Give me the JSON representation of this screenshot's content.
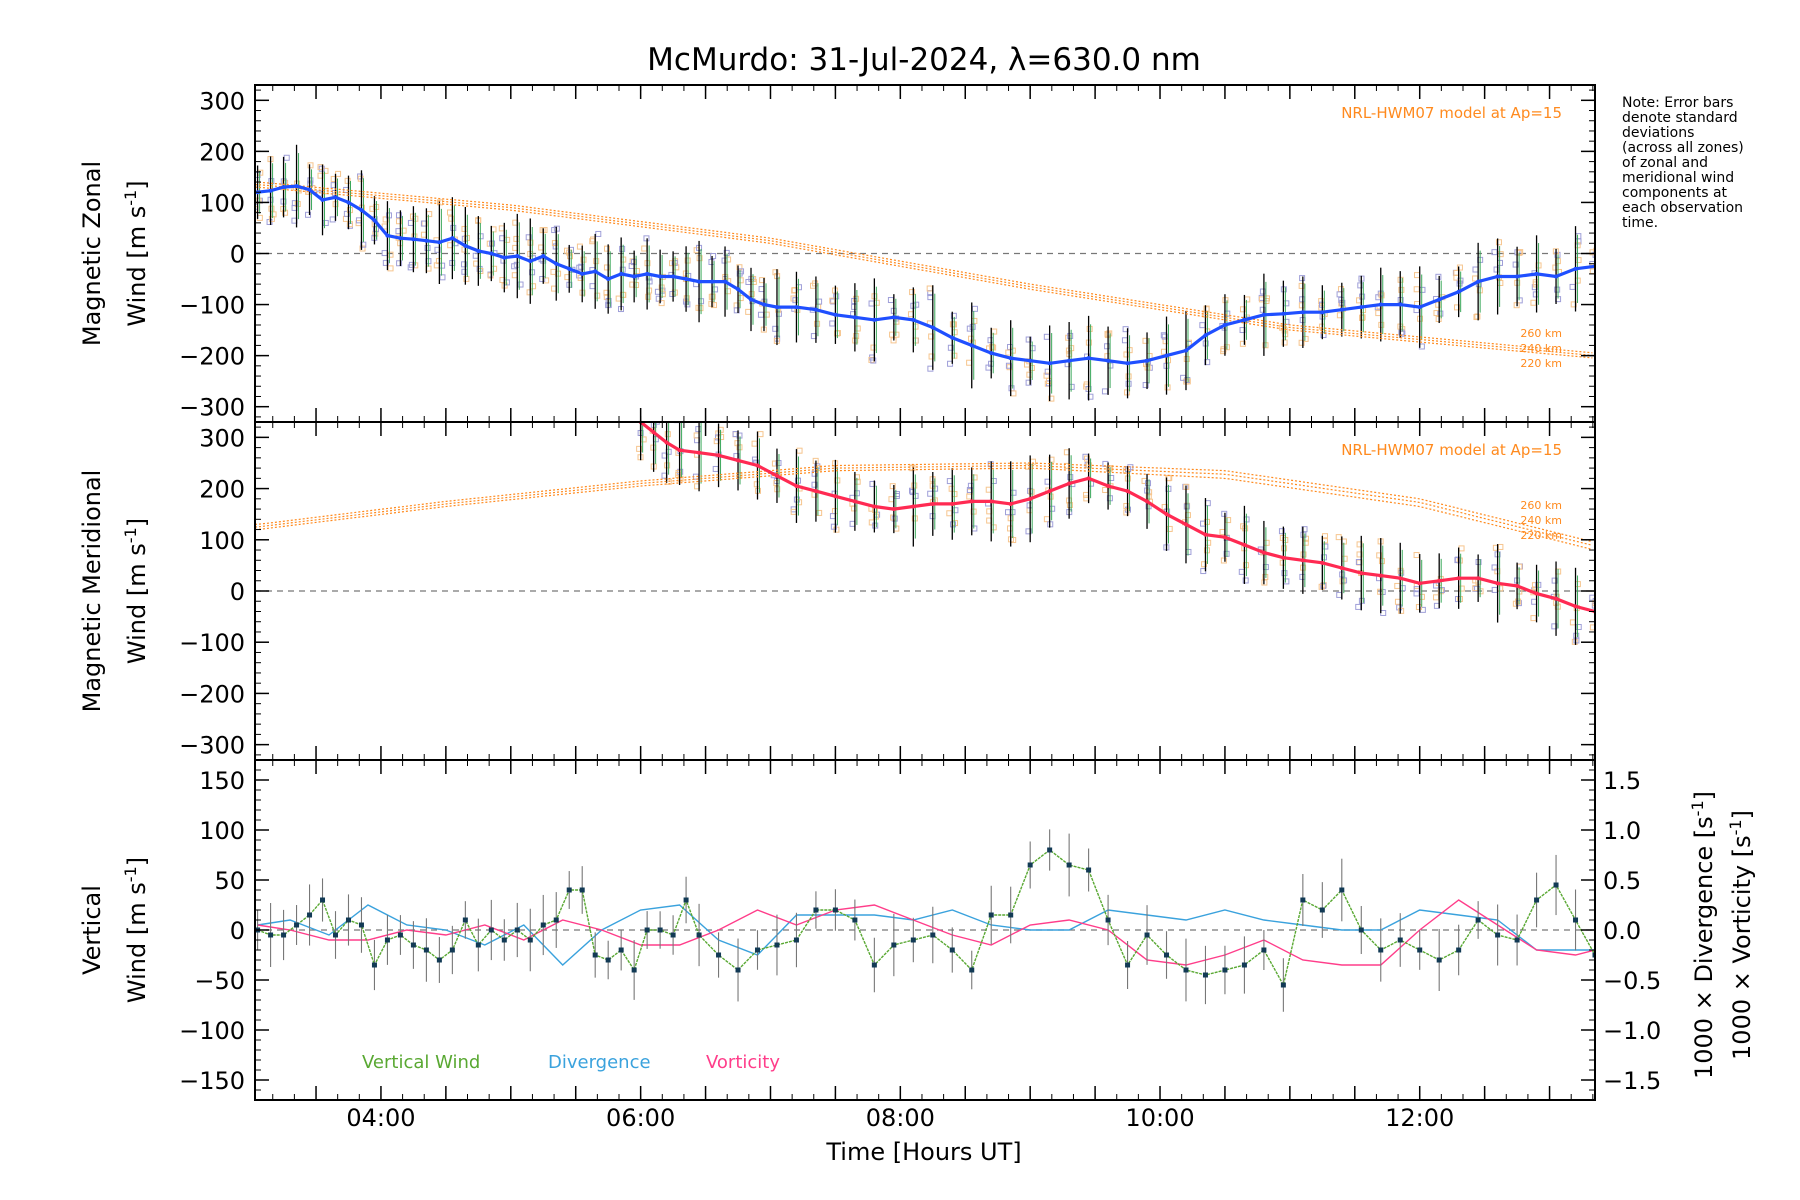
{
  "title": "McMurdo: 31-Jul-2024, λ=630.0 nm",
  "note": [
    "Note: Error bars",
    "denote standard",
    "deviations",
    "(across all zones)",
    "of zonal and",
    "meridional wind",
    "components at",
    "each observation",
    "time."
  ],
  "x_axis": {
    "label": "Time [Hours UT]",
    "ticks": [
      "04:00",
      "06:00",
      "08:00",
      "10:00",
      "12:00"
    ],
    "tick_values": [
      4,
      6,
      8,
      10,
      12
    ],
    "range": [
      3.03,
      13.35
    ]
  },
  "colors": {
    "zonal": "#1f4fff",
    "meridional": "#ff2a52",
    "vertical": "#59a832",
    "divergence": "#3aa2dd",
    "vorticity": "#ff3d8a",
    "model": "#ff8a1e",
    "zone_points": "#9f9fd8",
    "zone_points_alt": "#f6c58e",
    "errorbar": "#000000"
  },
  "chart_data": [
    {
      "type": "line",
      "panel": "zonal",
      "ylabel_line1": "Magnetic Zonal",
      "ylabel_line2": "Wind [m s",
      "ylabel_sup": "-1",
      "ylabel_end": "]",
      "ylim": [
        -330,
        330
      ],
      "yticks": [
        -300,
        -200,
        -100,
        0,
        100,
        200,
        300
      ],
      "ytick_labels": [
        "−300",
        "−200",
        "−100",
        "0",
        "100",
        "200",
        "300"
      ],
      "model_label": "NRL-HWM07 model at Ap=15",
      "model_altitudes": [
        "260 km",
        "240 km",
        "220 km"
      ],
      "series": [
        {
          "x": [
            3.05,
            3.15,
            3.25,
            3.35,
            3.45,
            3.55,
            3.65,
            3.75,
            3.85,
            3.95,
            4.05,
            4.15,
            4.25,
            4.35,
            4.45,
            4.55,
            4.65,
            4.75,
            4.85,
            4.95,
            5.05,
            5.15,
            5.25,
            5.35,
            5.45,
            5.55,
            5.65,
            5.75,
            5.85,
            5.95,
            6.05,
            6.15,
            6.25,
            6.35,
            6.45,
            6.55,
            6.65,
            6.75,
            6.85,
            6.95,
            7.05,
            7.2,
            7.35,
            7.5,
            7.65,
            7.8,
            7.95,
            8.1,
            8.25,
            8.4,
            8.55,
            8.7,
            8.85,
            9.0,
            9.15,
            9.3,
            9.45,
            9.6,
            9.75,
            9.9,
            10.05,
            10.2,
            10.35,
            10.5,
            10.65,
            10.8,
            10.95,
            11.1,
            11.25,
            11.4,
            11.55,
            11.7,
            11.85,
            12.0,
            12.15,
            12.3,
            12.45,
            12.6,
            12.75,
            12.9,
            13.05,
            13.2,
            13.35
          ],
          "y": [
            120,
            123,
            130,
            132,
            125,
            105,
            110,
            100,
            85,
            65,
            35,
            30,
            28,
            25,
            22,
            30,
            15,
            5,
            0,
            -8,
            -5,
            -15,
            -5,
            -20,
            -30,
            -40,
            -35,
            -50,
            -40,
            -45,
            -40,
            -45,
            -45,
            -50,
            -55,
            -55,
            -55,
            -70,
            -90,
            -100,
            -105,
            -105,
            -110,
            -120,
            -125,
            -130,
            -125,
            -130,
            -145,
            -165,
            -180,
            -195,
            -205,
            -210,
            -215,
            -210,
            -205,
            -210,
            -215,
            -210,
            -200,
            -190,
            -160,
            -140,
            -130,
            -120,
            -118,
            -115,
            -115,
            -110,
            -105,
            -100,
            -100,
            -105,
            -90,
            -75,
            -55,
            -45,
            -45,
            -40,
            -45,
            -30,
            -25
          ]
        }
      ],
      "model_curves": [
        {
          "name": "260 km",
          "x": [
            3.05,
            5,
            7,
            9,
            11,
            13.35
          ],
          "y": [
            140,
            95,
            30,
            -60,
            -140,
            -195
          ]
        },
        {
          "name": "240 km",
          "x": [
            3.05,
            5,
            7,
            9,
            11,
            13.35
          ],
          "y": [
            135,
            90,
            25,
            -65,
            -145,
            -200
          ]
        },
        {
          "name": "220 km",
          "x": [
            3.05,
            5,
            7,
            9,
            11,
            13.35
          ],
          "y": [
            130,
            85,
            20,
            -70,
            -150,
            -205
          ]
        }
      ]
    },
    {
      "type": "line",
      "panel": "meridional",
      "ylabel_line1": "Magnetic Meridional",
      "ylabel_line2": "Wind [m s",
      "ylabel_sup": "-1",
      "ylabel_end": "]",
      "ylim": [
        -330,
        330
      ],
      "yticks": [
        -300,
        -200,
        -100,
        0,
        100,
        200,
        300
      ],
      "ytick_labels": [
        "−300",
        "−200",
        "−100",
        "0",
        "100",
        "200",
        "300"
      ],
      "model_label": "NRL-HWM07 model at Ap=15",
      "model_altitudes": [
        "260 km",
        "240 km",
        "220 km"
      ],
      "series": [
        {
          "x": [
            6.0,
            6.1,
            6.2,
            6.3,
            6.45,
            6.6,
            6.75,
            6.9,
            7.05,
            7.2,
            7.35,
            7.5,
            7.65,
            7.8,
            7.95,
            8.1,
            8.25,
            8.4,
            8.55,
            8.7,
            8.85,
            9.0,
            9.15,
            9.3,
            9.45,
            9.6,
            9.75,
            9.9,
            10.05,
            10.2,
            10.35,
            10.5,
            10.65,
            10.8,
            10.95,
            11.1,
            11.25,
            11.4,
            11.55,
            11.7,
            11.85,
            12.0,
            12.15,
            12.3,
            12.45,
            12.6,
            12.75,
            12.9,
            13.05,
            13.2,
            13.35
          ],
          "y": [
            330,
            310,
            290,
            275,
            270,
            265,
            255,
            245,
            225,
            205,
            195,
            185,
            175,
            165,
            160,
            165,
            170,
            170,
            175,
            175,
            170,
            180,
            195,
            210,
            220,
            205,
            195,
            175,
            150,
            130,
            110,
            105,
            90,
            75,
            65,
            60,
            55,
            45,
            35,
            30,
            25,
            15,
            20,
            25,
            25,
            15,
            10,
            -5,
            -15,
            -30,
            -40
          ]
        }
      ],
      "model_curves": [
        {
          "name": "260 km",
          "x": [
            3.05,
            4.5,
            6,
            7.5,
            9,
            10.5,
            12,
            13.35
          ],
          "y": [
            130,
            175,
            215,
            245,
            250,
            235,
            180,
            95
          ]
        },
        {
          "name": "240 km",
          "x": [
            3.05,
            4.5,
            6,
            7.5,
            9,
            10.5,
            12,
            13.35
          ],
          "y": [
            125,
            170,
            210,
            240,
            245,
            228,
            173,
            88
          ]
        },
        {
          "name": "220 km",
          "x": [
            3.05,
            4.5,
            6,
            7.5,
            9,
            10.5,
            12,
            13.35
          ],
          "y": [
            120,
            165,
            205,
            235,
            240,
            220,
            165,
            80
          ]
        }
      ]
    },
    {
      "type": "line",
      "panel": "vertical",
      "ylabel_line1": "Vertical",
      "ylabel_line2": "Wind [m s",
      "ylabel_sup": "-1",
      "ylabel_end": "]",
      "ylim": [
        -170,
        170
      ],
      "yticks": [
        -150,
        -100,
        -50,
        0,
        50,
        100,
        150
      ],
      "ytick_labels": [
        "−150",
        "−100",
        "−50",
        "0",
        "50",
        "100",
        "150"
      ],
      "y2lim": [
        -1.7,
        1.7
      ],
      "y2ticks": [
        -1.5,
        -1.0,
        -0.5,
        0.0,
        0.5,
        1.0,
        1.5
      ],
      "y2tick_labels": [
        "−1.5",
        "−1.0",
        "−0.5",
        "0.0",
        "0.5",
        "1.0",
        "1.5"
      ],
      "y2label_div_main": "1000 × Divergence [s",
      "y2label_vort_main": "1000 × Vorticity [s",
      "y2label_sup": "-1",
      "y2label_end": "]",
      "legend": [
        "Vertical Wind",
        "Divergence",
        "Vorticity"
      ],
      "series": [
        {
          "name": "Vertical Wind",
          "x": [
            3.05,
            3.15,
            3.25,
            3.35,
            3.45,
            3.55,
            3.65,
            3.75,
            3.85,
            3.95,
            4.05,
            4.15,
            4.25,
            4.35,
            4.45,
            4.55,
            4.65,
            4.75,
            4.85,
            4.95,
            5.05,
            5.15,
            5.25,
            5.35,
            5.45,
            5.55,
            5.65,
            5.75,
            5.85,
            5.95,
            6.05,
            6.15,
            6.25,
            6.35,
            6.45,
            6.6,
            6.75,
            6.9,
            7.05,
            7.2,
            7.35,
            7.5,
            7.65,
            7.8,
            7.95,
            8.1,
            8.25,
            8.4,
            8.55,
            8.7,
            8.85,
            9.0,
            9.15,
            9.3,
            9.45,
            9.6,
            9.75,
            9.9,
            10.05,
            10.2,
            10.35,
            10.5,
            10.65,
            10.8,
            10.95,
            11.1,
            11.25,
            11.4,
            11.55,
            11.7,
            11.85,
            12.0,
            12.15,
            12.3,
            12.45,
            12.6,
            12.75,
            12.9,
            13.05,
            13.2,
            13.35
          ],
          "y": [
            0,
            -5,
            -5,
            5,
            15,
            30,
            -5,
            10,
            5,
            -35,
            -10,
            -5,
            -15,
            -20,
            -30,
            -20,
            10,
            -15,
            0,
            -10,
            0,
            -10,
            5,
            10,
            40,
            40,
            -25,
            -30,
            -20,
            -40,
            0,
            0,
            -5,
            30,
            -5,
            -25,
            -40,
            -20,
            -15,
            -10,
            20,
            20,
            10,
            -35,
            -15,
            -10,
            -5,
            -20,
            -40,
            15,
            15,
            65,
            80,
            65,
            60,
            10,
            -35,
            -5,
            -25,
            -40,
            -45,
            -40,
            -35,
            -20,
            -55,
            30,
            20,
            40,
            0,
            -20,
            -10,
            -20,
            -30,
            -20,
            10,
            -5,
            -10,
            30,
            45,
            10,
            -25
          ]
        },
        {
          "name": "Divergence",
          "x": [
            3.05,
            3.3,
            3.6,
            3.9,
            4.2,
            4.5,
            4.8,
            5.1,
            5.4,
            5.7,
            6.0,
            6.3,
            6.6,
            6.9,
            7.2,
            7.5,
            7.8,
            8.1,
            8.4,
            8.7,
            9.0,
            9.3,
            9.6,
            9.9,
            10.2,
            10.5,
            10.8,
            11.1,
            11.4,
            11.7,
            12.0,
            12.3,
            12.6,
            12.9,
            13.2,
            13.35
          ],
          "y": [
            0.05,
            0.1,
            -0.05,
            0.25,
            0.05,
            0.0,
            -0.15,
            0.05,
            -0.35,
            0.0,
            0.2,
            0.25,
            -0.1,
            -0.25,
            0.15,
            0.15,
            0.15,
            0.1,
            0.2,
            0.05,
            0.0,
            0.0,
            0.2,
            0.15,
            0.1,
            0.2,
            0.1,
            0.05,
            0.0,
            0.0,
            0.2,
            0.15,
            0.1,
            -0.2,
            -0.2,
            -0.2
          ]
        },
        {
          "name": "Vorticity",
          "x": [
            3.05,
            3.3,
            3.6,
            3.9,
            4.2,
            4.5,
            4.8,
            5.1,
            5.4,
            5.7,
            6.0,
            6.3,
            6.6,
            6.9,
            7.2,
            7.5,
            7.8,
            8.1,
            8.4,
            8.7,
            9.0,
            9.3,
            9.6,
            9.9,
            10.2,
            10.5,
            10.8,
            11.1,
            11.4,
            11.7,
            12.0,
            12.3,
            12.6,
            12.9,
            13.2,
            13.35
          ],
          "y": [
            0.05,
            0.0,
            -0.1,
            -0.1,
            0.0,
            -0.05,
            0.05,
            -0.1,
            0.1,
            0.0,
            -0.15,
            -0.15,
            0.0,
            0.2,
            0.05,
            0.2,
            0.25,
            0.1,
            -0.05,
            -0.15,
            0.05,
            0.1,
            0.0,
            -0.3,
            -0.35,
            -0.25,
            -0.1,
            -0.3,
            -0.35,
            -0.35,
            0.0,
            0.3,
            0.05,
            -0.2,
            -0.25,
            -0.2
          ]
        }
      ]
    }
  ]
}
